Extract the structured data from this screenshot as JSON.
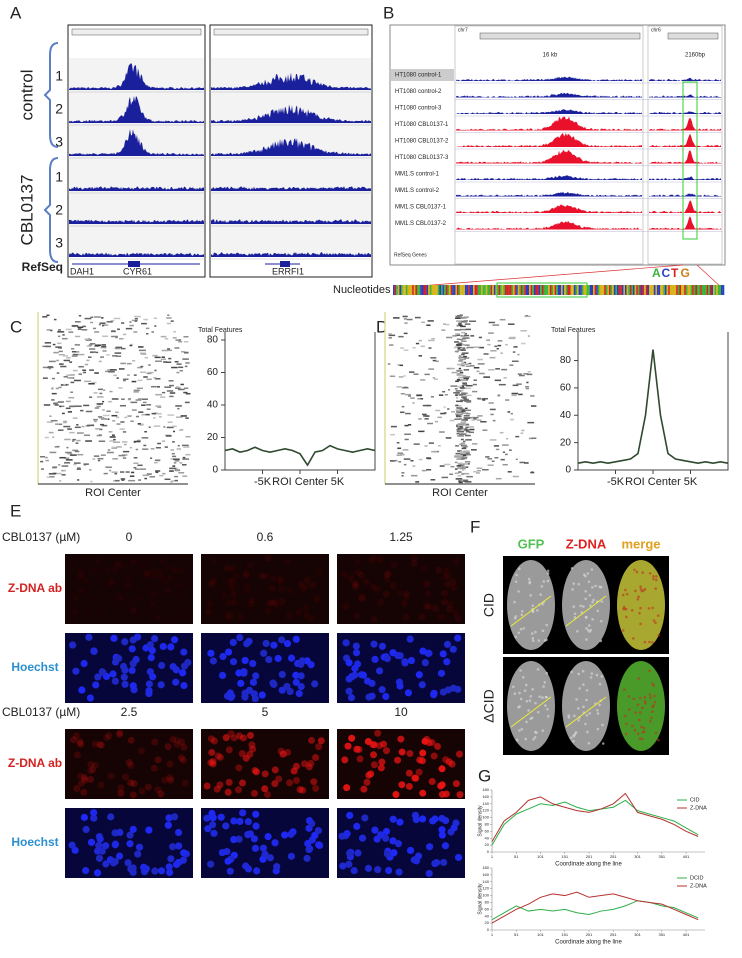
{
  "panel_a": {
    "label": "A",
    "groups": [
      "control",
      "CBL0137"
    ],
    "replicates": [
      "1",
      "2",
      "3",
      "1",
      "2",
      "3"
    ],
    "track_label": "RefSeq",
    "genes": [
      "DAH1",
      "CYR61",
      "ERRFI1"
    ]
  },
  "panel_b": {
    "label": "B",
    "tracks": [
      "HT1080 control-1",
      "HT1080 control-2",
      "HT1080 control-3",
      "HT1080 CBL0137-1",
      "HT1080 CBL0137-2",
      "HT1080 CBL0137-3",
      "MM1.S control-1",
      "MM1.S control-2",
      "MM1.S CBL0137-1",
      "MM1.S CBL0137-2"
    ],
    "chromosomes": [
      "chr7",
      "chr6"
    ],
    "scales": [
      "16 kb",
      "2160bp"
    ],
    "refseq": "RefSeq Genes",
    "nucleotides_label": "Nucleotides",
    "bases": [
      "A",
      "C",
      "T",
      "G"
    ]
  },
  "panel_c": {
    "label": "C",
    "heatmap_label": "ROI Center",
    "chart": {
      "title": "Total Features",
      "x": [
        -10000,
        -9000,
        -8000,
        -7000,
        -6000,
        -5000,
        -4000,
        -3000,
        -2000,
        -1000,
        0,
        1000,
        2000,
        3000,
        4000,
        5000,
        6000,
        7000,
        8000,
        9000,
        10000
      ],
      "values": [
        12,
        13,
        11,
        12,
        14,
        12,
        11,
        12,
        13,
        12,
        10,
        3,
        11,
        12,
        15,
        13,
        12,
        11,
        12,
        13,
        12
      ],
      "xlim": [
        -10000,
        10000
      ],
      "ylim": [
        0,
        80
      ],
      "yticks": [
        0,
        20,
        40,
        60,
        80
      ],
      "xticks": [
        {
          "value": -5000,
          "label": "-5K"
        },
        {
          "value": 0,
          "label": "ROI Center"
        },
        {
          "value": 5000,
          "label": "5K"
        }
      ]
    }
  },
  "panel_d": {
    "label": "D",
    "heatmap_label": "ROI Center",
    "chart": {
      "title": "Total Features",
      "x": [
        -10000,
        -9000,
        -8000,
        -7000,
        -6000,
        -5000,
        -4000,
        -3000,
        -2000,
        -1000,
        0,
        1000,
        2000,
        3000,
        4000,
        5000,
        6000,
        7000,
        8000,
        9000,
        10000
      ],
      "values": [
        5,
        6,
        5,
        6,
        5,
        6,
        7,
        8,
        12,
        40,
        88,
        40,
        12,
        8,
        7,
        6,
        5,
        6,
        5,
        6,
        5
      ],
      "xlim": [
        -10000,
        10000
      ],
      "ylim": [
        0,
        95
      ],
      "yticks": [
        0,
        20,
        40,
        60,
        80
      ],
      "xticks": [
        {
          "value": -5000,
          "label": "-5K"
        },
        {
          "value": 0,
          "label": "ROI Center"
        },
        {
          "value": 5000,
          "label": "5K"
        }
      ]
    }
  },
  "panel_e": {
    "label": "E",
    "conc_label": "CBL0137 (µM)",
    "concentrations": [
      "0",
      "0.6",
      "1.25",
      "2.5",
      "5",
      "10"
    ],
    "stains": [
      "Z-DNA ab",
      "Hoechst"
    ]
  },
  "panel_f": {
    "label": "F",
    "channels": [
      "GFP",
      "Z-DNA",
      "merge"
    ],
    "rows": [
      "CID",
      "ΔCID"
    ]
  },
  "panel_g": {
    "label": "G",
    "charts": [
      {
        "x": [
          1,
          26,
          51,
          76,
          101,
          126,
          151,
          176,
          201,
          226,
          251,
          276,
          301,
          326,
          351,
          376,
          401,
          426
        ],
        "xlim": [
          1,
          440
        ],
        "ylim": [
          0,
          180
        ],
        "yticks": [
          0,
          20,
          40,
          60,
          80,
          100,
          120,
          140,
          160,
          180
        ],
        "xticks": [
          1,
          51,
          101,
          151,
          201,
          251,
          301,
          351,
          401
        ],
        "xlabel": "Coordinate along the line",
        "ylabel": "Signal density",
        "series": [
          {
            "name": "CID",
            "color": "#2db04b",
            "values": [
              20,
              80,
              110,
              125,
              140,
              135,
              145,
              130,
              120,
              125,
              130,
              150,
              120,
              110,
              100,
              90,
              70,
              50
            ]
          },
          {
            "name": "Z-DNA",
            "color": "#b5322f",
            "values": [
              30,
              90,
              115,
              150,
              160,
              140,
              130,
              120,
              115,
              125,
              140,
              170,
              115,
              105,
              95,
              80,
              60,
              45
            ]
          }
        ]
      },
      {
        "x": [
          1,
          26,
          51,
          76,
          101,
          126,
          151,
          176,
          201,
          226,
          251,
          276,
          301,
          326,
          351,
          376,
          401,
          426
        ],
        "xlim": [
          1,
          440
        ],
        "ylim": [
          0,
          180
        ],
        "yticks": [
          0,
          20,
          40,
          60,
          80,
          100,
          120,
          140,
          160,
          180
        ],
        "xticks": [
          1,
          51,
          101,
          151,
          201,
          251,
          301,
          351,
          401
        ],
        "xlabel": "Coordinate along the line",
        "ylabel": "Signal density",
        "series": [
          {
            "name": "DCID",
            "color": "#2db04b",
            "values": [
              30,
              50,
              70,
              55,
              60,
              55,
              60,
              50,
              45,
              55,
              60,
              70,
              85,
              80,
              70,
              65,
              50,
              35
            ]
          },
          {
            "name": "Z-DNA",
            "color": "#b5322f",
            "values": [
              20,
              40,
              60,
              75,
              95,
              105,
              100,
              110,
              95,
              100,
              105,
              95,
              85,
              80,
              75,
              60,
              45,
              30
            ]
          }
        ]
      }
    ]
  }
}
